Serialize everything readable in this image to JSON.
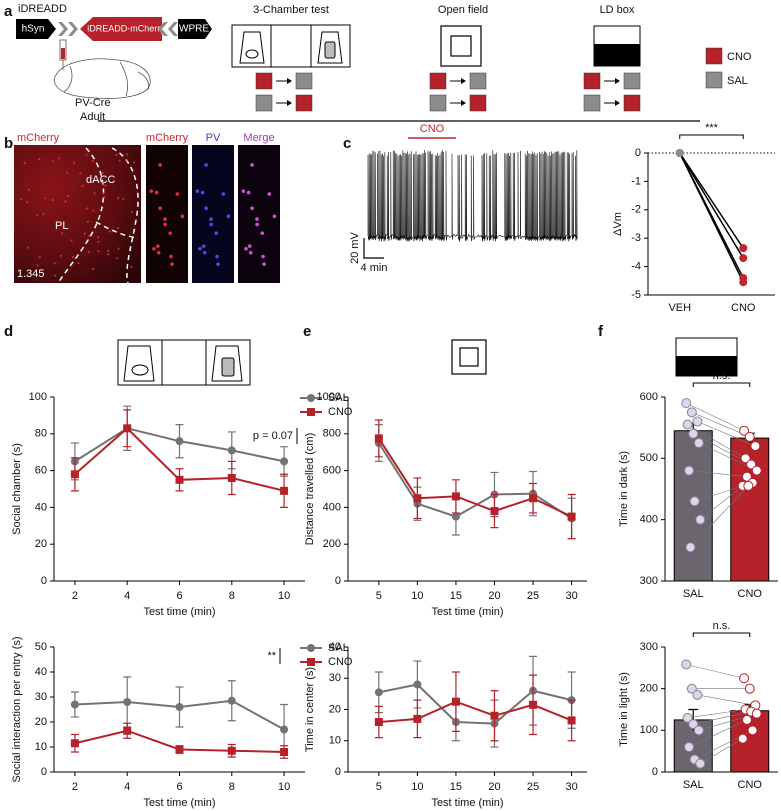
{
  "figure": {
    "panels": [
      "a",
      "b",
      "c",
      "d",
      "e",
      "f"
    ]
  },
  "schematic": {
    "construct": "iDREADD",
    "elements": [
      "hSyn",
      "iDREADD-mCherry",
      "WPRE"
    ],
    "mouse": "PV-Cre",
    "age": "Adult",
    "tests": [
      "3-Chamber test",
      "Open field",
      "LD box"
    ],
    "legend": [
      {
        "name": "CNO",
        "color": "#b5222a"
      },
      {
        "name": "SAL",
        "color": "#8c8c8c"
      }
    ]
  },
  "histology": {
    "channels": [
      {
        "name": "mCherry",
        "color": "#d4232c"
      },
      {
        "name": "mCherry",
        "color": "#d4232c"
      },
      {
        "name": "PV",
        "color": "#3b3bd6"
      },
      {
        "name": "Merge",
        "color": "#a03aa8"
      }
    ],
    "regions": [
      "dACC",
      "PL"
    ],
    "coordinate": "1.345"
  },
  "trace": {
    "drug": "CNO",
    "drug_color": "#c0272d",
    "scale_y": "20 mV",
    "scale_x": "4 min"
  },
  "chart_data": [
    {
      "type": "paired",
      "categories": [
        "VEH",
        "CNO"
      ],
      "ylabel": "ΔVm",
      "ylim": [
        -5,
        0
      ],
      "yticks": [
        0,
        -1,
        -2,
        -3,
        -4,
        -5
      ],
      "reference_line": 0,
      "annotation": "***",
      "point_colors": [
        "#8c8c8c",
        "#c0272d"
      ],
      "line_color": "#000000",
      "series": [
        {
          "values": [
            0,
            -3.35
          ]
        },
        {
          "values": [
            0,
            -3.7
          ]
        },
        {
          "values": [
            0,
            -4.4
          ]
        },
        {
          "values": [
            0,
            -4.55
          ]
        }
      ]
    },
    {
      "type": "line",
      "xlabel": "Test time (min)",
      "ylabel": "Social chamber (s)",
      "x": [
        2,
        4,
        6,
        8,
        10
      ],
      "xlim": [
        1.2,
        10.8
      ],
      "xticks": [
        2,
        4,
        6,
        8,
        10
      ],
      "ylim": [
        0,
        100
      ],
      "yticks": [
        0,
        20,
        40,
        60,
        80,
        100
      ],
      "legend": "upper right",
      "annotation": "p = 0.07",
      "series": [
        {
          "name": "SAL",
          "color": "#737373",
          "marker": "circle",
          "values": [
            65,
            83,
            76,
            71,
            65
          ],
          "errors": [
            10,
            12,
            9,
            10,
            8
          ]
        },
        {
          "name": "CNO",
          "color": "#b5222a",
          "marker": "square",
          "values": [
            58,
            83,
            55,
            56,
            49
          ],
          "errors": [
            9,
            10,
            6,
            9,
            9
          ]
        }
      ]
    },
    {
      "type": "line",
      "xlabel": "Test time (min)",
      "ylabel": "Social interaction per entry (s)",
      "x": [
        2,
        4,
        6,
        8,
        10
      ],
      "xlim": [
        1.2,
        10.8
      ],
      "xticks": [
        2,
        4,
        6,
        8,
        10
      ],
      "ylim": [
        0,
        50
      ],
      "yticks": [
        0,
        10,
        20,
        30,
        40,
        50
      ],
      "legend": "upper right",
      "annotation": "**",
      "series": [
        {
          "name": "SAL",
          "color": "#737373",
          "marker": "circle",
          "values": [
            27,
            28,
            26,
            28.5,
            17
          ],
          "errors": [
            5,
            10,
            8,
            8,
            10
          ]
        },
        {
          "name": "CNO",
          "color": "#b5222a",
          "marker": "square",
          "values": [
            11.5,
            16.5,
            9,
            8.5,
            8
          ],
          "errors": [
            3.5,
            3,
            1.5,
            2.5,
            2.5
          ]
        }
      ]
    },
    {
      "type": "line",
      "xlabel": "Test time (min)",
      "ylabel": "Distance travelled (cm)",
      "x": [
        5,
        10,
        15,
        20,
        25,
        30
      ],
      "xlim": [
        1,
        32
      ],
      "xticks": [
        5,
        10,
        15,
        20,
        25,
        30
      ],
      "ylim": [
        0,
        1000
      ],
      "yticks": [
        0,
        200,
        400,
        600,
        800,
        1000
      ],
      "series": [
        {
          "color": "#737373",
          "marker": "circle",
          "values": [
            750,
            420,
            350,
            470,
            475,
            340
          ],
          "errors": [
            100,
            90,
            100,
            120,
            120,
            110
          ]
        },
        {
          "color": "#b5222a",
          "marker": "square",
          "values": [
            775,
            450,
            460,
            380,
            450,
            350
          ],
          "errors": [
            100,
            110,
            90,
            90,
            80,
            120
          ]
        }
      ]
    },
    {
      "type": "line",
      "xlabel": "Test time (min)",
      "ylabel": "Time in center (s)",
      "x": [
        5,
        10,
        15,
        20,
        25,
        30
      ],
      "xlim": [
        1,
        32
      ],
      "xticks": [
        5,
        10,
        15,
        20,
        25,
        30
      ],
      "ylim": [
        0,
        40
      ],
      "yticks": [
        0,
        10,
        20,
        30,
        40
      ],
      "series": [
        {
          "color": "#737373",
          "marker": "circle",
          "values": [
            25.5,
            28,
            16,
            15.5,
            26,
            23
          ],
          "errors": [
            6.5,
            7.5,
            6,
            7.5,
            11,
            9
          ]
        },
        {
          "color": "#b5222a",
          "marker": "square",
          "values": [
            16,
            17,
            22.5,
            18,
            21.5,
            16.5
          ],
          "errors": [
            5,
            6,
            9.5,
            8,
            9.5,
            6.5
          ]
        }
      ]
    },
    {
      "type": "bar",
      "categories": [
        "SAL",
        "CNO"
      ],
      "ylabel": "Time in dark (s)",
      "ylim": [
        300,
        600
      ],
      "yticks": [
        300,
        400,
        500,
        600
      ],
      "annotation": "n.s.",
      "colors": [
        "#6b666e",
        "#b5222a"
      ],
      "point_fill": [
        "#ddd5ea",
        "#ffffff"
      ],
      "point_stroke": [
        "#8a8296",
        "#b5222a"
      ],
      "values": [
        545,
        533
      ],
      "errors": [
        12,
        8
      ],
      "points": [
        [
          590,
          575,
          560,
          555,
          540,
          525,
          480,
          430,
          400,
          355
        ],
        [
          545,
          535,
          520,
          500,
          490,
          480,
          470,
          460,
          455,
          455
        ]
      ]
    },
    {
      "type": "bar",
      "categories": [
        "SAL",
        "CNO"
      ],
      "ylabel": "Time in light (s)",
      "ylim": [
        0,
        300
      ],
      "yticks": [
        0,
        100,
        200,
        300
      ],
      "annotation": "n.s.",
      "colors": [
        "#6b666e",
        "#b5222a"
      ],
      "point_fill": [
        "#ddd5ea",
        "#ffffff"
      ],
      "point_stroke": [
        "#8a8296",
        "#b5222a"
      ],
      "values": [
        125,
        147
      ],
      "errors": [
        25,
        15
      ],
      "points": [
        [
          258,
          200,
          185,
          130,
          115,
          100,
          60,
          30,
          20
        ],
        [
          225,
          200,
          160,
          150,
          145,
          140,
          125,
          100,
          80
        ]
      ]
    }
  ]
}
